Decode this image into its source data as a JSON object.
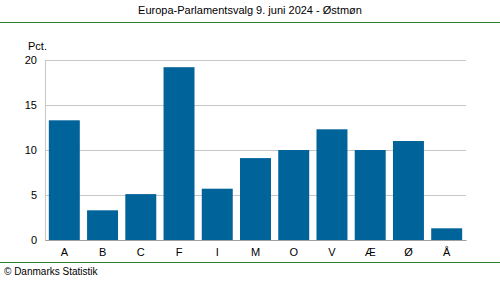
{
  "chart_data": {
    "type": "bar",
    "title": "Europa-Parlamentsvalg 9. juni 2024 - Østmøn",
    "y_label": "Pct.",
    "source": "© Danmarks Statistik",
    "categories": [
      "A",
      "B",
      "C",
      "F",
      "I",
      "M",
      "O",
      "V",
      "Æ",
      "Ø",
      "Å"
    ],
    "values": [
      13.3,
      3.3,
      5.1,
      19.2,
      5.7,
      9.1,
      10.0,
      12.3,
      10.0,
      11.0,
      1.3
    ],
    "color": "#00639a",
    "ylim": [
      0,
      20
    ],
    "yticks": [
      0,
      5,
      10,
      15,
      20
    ],
    "grid": true
  }
}
